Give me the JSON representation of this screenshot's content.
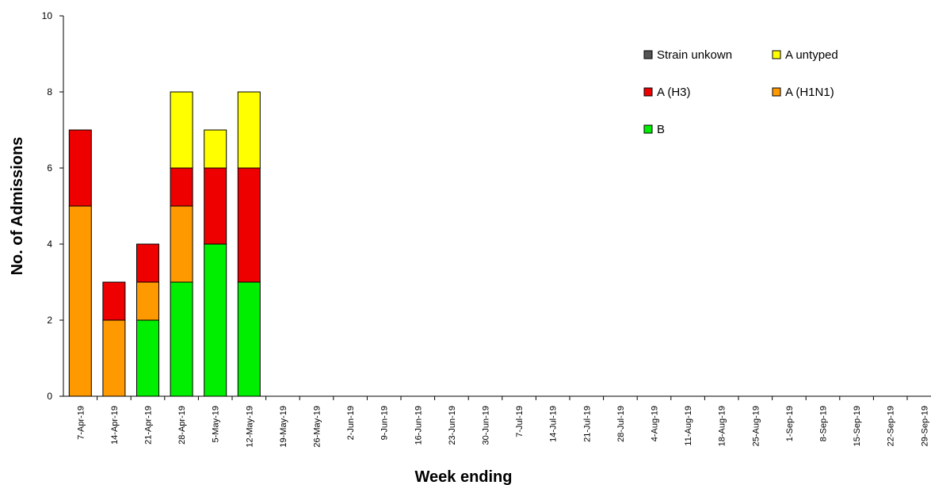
{
  "chart_data": {
    "type": "bar",
    "stacked": true,
    "title": "",
    "xlabel": "Week ending",
    "ylabel": "No. of Admissions",
    "ylim": [
      0,
      10
    ],
    "yticks": [
      0,
      2,
      4,
      6,
      8,
      10
    ],
    "grid": false,
    "legend_position": "top-right",
    "categories": [
      "7-Apr-19",
      "14-Apr-19",
      "21-Apr-19",
      "28-Apr-19",
      "5-May-19",
      "12-May-19",
      "19-May-19",
      "26-May-19",
      "2-Jun-19",
      "9-Jun-19",
      "16-Jun-19",
      "23-Jun-19",
      "30-Jun-19",
      "7-Jul-19",
      "14-Jul-19",
      "21-Jul-19",
      "28-Jul-19",
      "4-Aug-19",
      "11-Aug-19",
      "18-Aug-19",
      "25-Aug-19",
      "1-Sep-19",
      "8-Sep-19",
      "15-Sep-19",
      "22-Sep-19",
      "29-Sep-19"
    ],
    "series": [
      {
        "name": "B",
        "color": "#00ee00",
        "values": [
          0,
          0,
          2,
          3,
          4,
          3,
          0,
          0,
          0,
          0,
          0,
          0,
          0,
          0,
          0,
          0,
          0,
          0,
          0,
          0,
          0,
          0,
          0,
          0,
          0,
          0
        ]
      },
      {
        "name": "A (H1N1)",
        "color": "#ff9900",
        "values": [
          5,
          2,
          1,
          2,
          0,
          0,
          0,
          0,
          0,
          0,
          0,
          0,
          0,
          0,
          0,
          0,
          0,
          0,
          0,
          0,
          0,
          0,
          0,
          0,
          0,
          0
        ]
      },
      {
        "name": "A (H3)",
        "color": "#ee0000",
        "values": [
          2,
          1,
          1,
          1,
          2,
          3,
          0,
          0,
          0,
          0,
          0,
          0,
          0,
          0,
          0,
          0,
          0,
          0,
          0,
          0,
          0,
          0,
          0,
          0,
          0,
          0
        ]
      },
      {
        "name": "A untyped",
        "color": "#ffff00",
        "values": [
          0,
          0,
          0,
          2,
          1,
          2,
          0,
          0,
          0,
          0,
          0,
          0,
          0,
          0,
          0,
          0,
          0,
          0,
          0,
          0,
          0,
          0,
          0,
          0,
          0,
          0
        ]
      },
      {
        "name": "Strain unkown",
        "color": "#555555",
        "values": [
          0,
          0,
          0,
          0,
          0,
          0,
          0,
          0,
          0,
          0,
          0,
          0,
          0,
          0,
          0,
          0,
          0,
          0,
          0,
          0,
          0,
          0,
          0,
          0,
          0,
          0
        ]
      }
    ],
    "legend": [
      "Strain unkown",
      "A untyped",
      "A (H3)",
      "A (H1N1)",
      "B"
    ]
  }
}
